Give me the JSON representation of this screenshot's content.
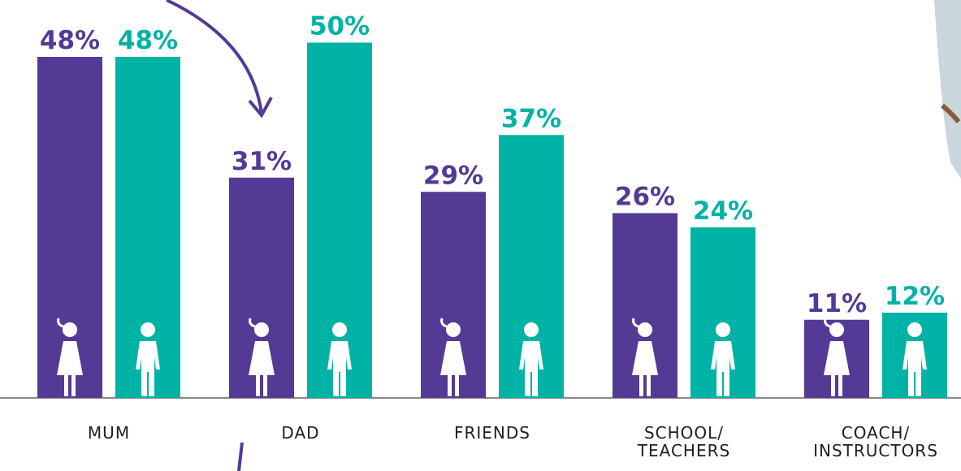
{
  "chart_data": {
    "type": "bar",
    "categories": [
      "MUM",
      "DAD",
      "FRIENDS",
      "SCHOOL/\nTEACHERS",
      "COACH/\nINSTRUCTORS"
    ],
    "series": [
      {
        "color": "#533a95",
        "values": [
          48,
          31,
          29,
          26,
          11
        ],
        "value_labels": [
          "48%",
          "31%",
          "29%",
          "26%",
          "11%"
        ]
      },
      {
        "color": "#00b3a4",
        "values": [
          48,
          50,
          37,
          24,
          12
        ],
        "value_labels": [
          "48%",
          "50%",
          "37%",
          "24%",
          "12%"
        ]
      }
    ],
    "ylim": [
      0,
      56
    ]
  }
}
